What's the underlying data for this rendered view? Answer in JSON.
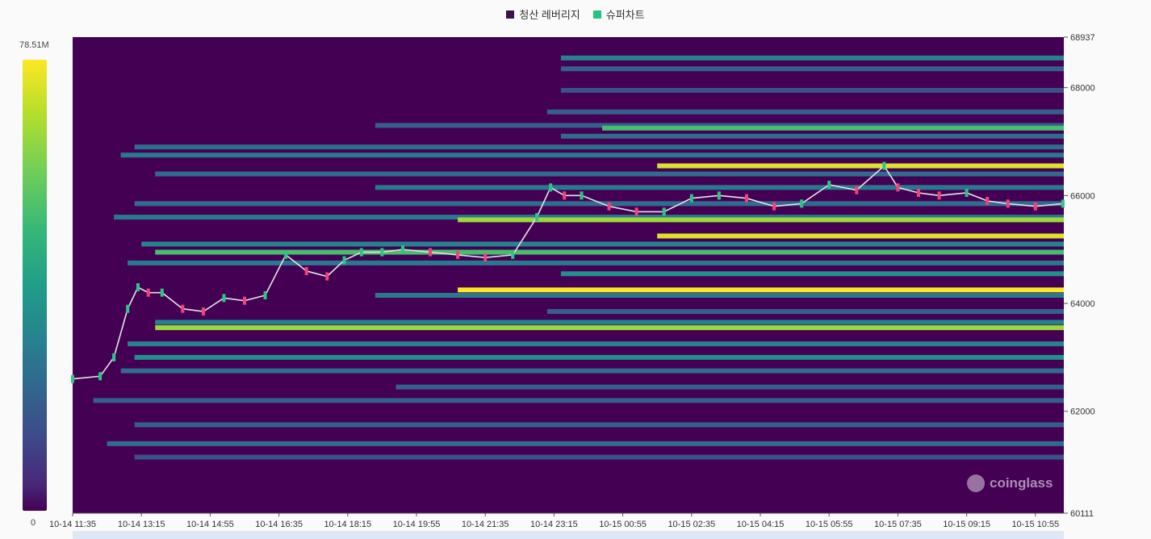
{
  "legend": [
    {
      "label": "청산 레버리지",
      "color": "#3b0f52"
    },
    {
      "label": "슈퍼차트",
      "color": "#23c483"
    }
  ],
  "colorbar": {
    "max_label": "78.51M",
    "min_label": "0"
  },
  "watermark": "coinglass",
  "chart_data": {
    "type": "heatmap",
    "y_axis": {
      "min": 60111,
      "max": 68937,
      "ticks": [
        68937,
        68000,
        66000,
        64000,
        62000,
        60111
      ],
      "position": "right"
    },
    "x_axis": {
      "labels": [
        "10-14 11:35",
        "10-14 13:15",
        "10-14 14:55",
        "10-14 16:35",
        "10-14 18:15",
        "10-14 19:55",
        "10-14 21:35",
        "10-14 23:15",
        "10-15 00:55",
        "10-15 02:35",
        "10-15 04:15",
        "10-15 05:55",
        "10-15 07:35",
        "10-15 09:15",
        "10-15 10:55"
      ]
    },
    "colorscale": {
      "min": 0,
      "max": 78510000,
      "unit": "USD"
    },
    "liquidation_bands": [
      {
        "price": 68550,
        "start": 7.1,
        "intensity": 0.45
      },
      {
        "price": 68350,
        "start": 7.1,
        "intensity": 0.3
      },
      {
        "price": 67950,
        "start": 7.1,
        "intensity": 0.25
      },
      {
        "price": 67550,
        "start": 6.9,
        "intensity": 0.3
      },
      {
        "price": 67300,
        "start": 4.4,
        "intensity": 0.3
      },
      {
        "price": 67250,
        "start": 7.7,
        "intensity": 0.7
      },
      {
        "price": 67100,
        "start": 7.1,
        "intensity": 0.35
      },
      {
        "price": 66900,
        "start": 0.9,
        "intensity": 0.35
      },
      {
        "price": 66750,
        "start": 0.7,
        "intensity": 0.4
      },
      {
        "price": 66550,
        "start": 8.5,
        "intensity": 0.95
      },
      {
        "price": 66400,
        "start": 1.2,
        "intensity": 0.35
      },
      {
        "price": 66150,
        "start": 4.4,
        "intensity": 0.4
      },
      {
        "price": 65850,
        "start": 0.9,
        "intensity": 0.35
      },
      {
        "price": 65600,
        "start": 0.6,
        "intensity": 0.4
      },
      {
        "price": 65550,
        "start": 5.6,
        "intensity": 0.85
      },
      {
        "price": 65250,
        "start": 8.5,
        "intensity": 0.95
      },
      {
        "price": 65100,
        "start": 1.0,
        "intensity": 0.45
      },
      {
        "price": 64950,
        "start": 1.2,
        "intensity": 0.7
      },
      {
        "price": 64750,
        "start": 0.8,
        "intensity": 0.4
      },
      {
        "price": 64550,
        "start": 7.1,
        "intensity": 0.5
      },
      {
        "price": 64250,
        "start": 5.6,
        "intensity": 1.0
      },
      {
        "price": 64150,
        "start": 4.4,
        "intensity": 0.4
      },
      {
        "price": 63850,
        "start": 6.9,
        "intensity": 0.3
      },
      {
        "price": 63650,
        "start": 1.2,
        "intensity": 0.45
      },
      {
        "price": 63550,
        "start": 1.2,
        "intensity": 0.85
      },
      {
        "price": 63250,
        "start": 0.8,
        "intensity": 0.45
      },
      {
        "price": 63000,
        "start": 0.9,
        "intensity": 0.5
      },
      {
        "price": 62750,
        "start": 0.7,
        "intensity": 0.35
      },
      {
        "price": 62450,
        "start": 4.7,
        "intensity": 0.3
      },
      {
        "price": 62200,
        "start": 0.3,
        "intensity": 0.3
      },
      {
        "price": 61750,
        "start": 0.9,
        "intensity": 0.3
      },
      {
        "price": 61400,
        "start": 0.5,
        "intensity": 0.35
      },
      {
        "price": 61150,
        "start": 0.9,
        "intensity": 0.25
      }
    ],
    "price_series": {
      "label": "슈퍼차트",
      "x": [
        0,
        0.4,
        0.6,
        0.8,
        0.95,
        1.1,
        1.3,
        1.6,
        1.9,
        2.2,
        2.5,
        2.8,
        3.1,
        3.4,
        3.7,
        3.95,
        4.2,
        4.5,
        4.8,
        5.2,
        5.6,
        6.0,
        6.4,
        6.75,
        6.95,
        7.15,
        7.4,
        7.8,
        8.2,
        8.6,
        9.0,
        9.4,
        9.8,
        10.2,
        10.6,
        11.0,
        11.4,
        11.8,
        12.0,
        12.3,
        12.6,
        13.0,
        13.3,
        13.6,
        14.0,
        14.4
      ],
      "close": [
        62600,
        62650,
        63000,
        63900,
        64300,
        64200,
        64200,
        63900,
        63850,
        64100,
        64050,
        64150,
        64900,
        64600,
        64500,
        64800,
        64950,
        64950,
        65000,
        64950,
        64900,
        64850,
        64900,
        65600,
        66150,
        66000,
        66000,
        65800,
        65700,
        65700,
        65950,
        66000,
        65950,
        65800,
        65850,
        66200,
        66100,
        66550,
        66150,
        66050,
        66000,
        66050,
        65900,
        65850,
        65800,
        65850
      ]
    }
  }
}
